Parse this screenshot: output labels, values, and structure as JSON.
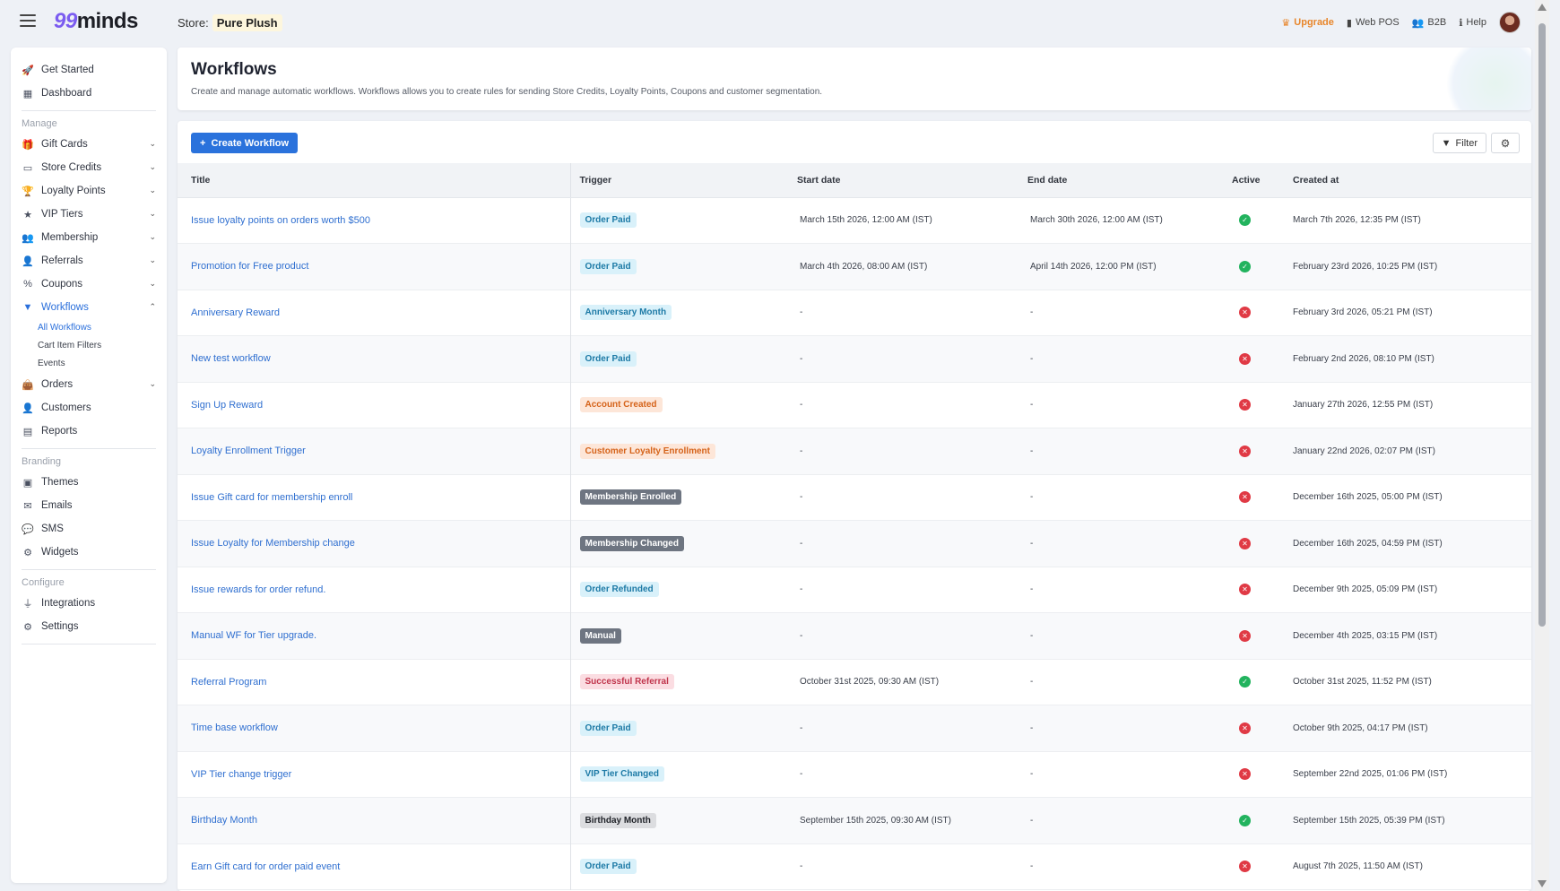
{
  "app": {
    "logo_num": "99",
    "logo_text": "minds",
    "store_label": "Store:",
    "store_name": "Pure Plush"
  },
  "top_actions": {
    "upgrade": "Upgrade",
    "web_pos": "Web POS",
    "b2b": "B2B",
    "help": "Help"
  },
  "sidebar": {
    "top_items": [
      {
        "label": "Get Started",
        "icon": "rocket-icon"
      },
      {
        "label": "Dashboard",
        "icon": "dashboard-icon"
      }
    ],
    "manage_label": "Manage",
    "manage_items": [
      {
        "label": "Gift Cards",
        "icon": "gift-icon"
      },
      {
        "label": "Store Credits",
        "icon": "credit-card-icon"
      },
      {
        "label": "Loyalty Points",
        "icon": "trophy-icon"
      },
      {
        "label": "VIP Tiers",
        "icon": "star-icon"
      },
      {
        "label": "Membership",
        "icon": "users-icon"
      },
      {
        "label": "Referrals",
        "icon": "user-plus-icon"
      },
      {
        "label": "Coupons",
        "icon": "percent-icon"
      },
      {
        "label": "Workflows",
        "icon": "filter-icon"
      }
    ],
    "workflow_subitems": [
      "All Workflows",
      "Cart Item Filters",
      "Events"
    ],
    "other_items": [
      {
        "label": "Orders",
        "icon": "bag-icon"
      },
      {
        "label": "Customers",
        "icon": "user-icon"
      },
      {
        "label": "Reports",
        "icon": "table-icon"
      }
    ],
    "branding_label": "Branding",
    "branding_items": [
      {
        "label": "Themes",
        "icon": "image-icon"
      },
      {
        "label": "Emails",
        "icon": "envelope-icon"
      },
      {
        "label": "SMS",
        "icon": "chat-icon"
      },
      {
        "label": "Widgets",
        "icon": "cog-icon"
      }
    ],
    "configure_label": "Configure",
    "configure_items": [
      {
        "label": "Integrations",
        "icon": "plug-icon"
      },
      {
        "label": "Settings",
        "icon": "cog-icon"
      }
    ]
  },
  "page": {
    "title": "Workflows",
    "description": "Create and manage automatic workflows. Workflows allows you to create rules for sending Store Credits, Loyalty Points, Coupons and customer segmentation."
  },
  "toolbar": {
    "create_label": "Create Workflow",
    "filter_label": "Filter"
  },
  "table": {
    "headers": [
      "Title",
      "Trigger",
      "Start date",
      "End date",
      "Active",
      "Created at"
    ],
    "rows": [
      {
        "title": "Issue loyalty points on orders worth $500",
        "trigger": "Order Paid",
        "badge": "blue",
        "start": "March 15th 2026, 12:00 AM (IST)",
        "end": "March 30th 2026, 12:00 AM (IST)",
        "active": true,
        "created": "March 7th 2026, 12:35 PM (IST)"
      },
      {
        "title": "Promotion for Free product",
        "trigger": "Order Paid",
        "badge": "blue",
        "start": "March 4th 2026, 08:00 AM (IST)",
        "end": "April 14th 2026, 12:00 PM (IST)",
        "active": true,
        "created": "February 23rd 2026, 10:25 PM (IST)"
      },
      {
        "title": "Anniversary Reward",
        "trigger": "Anniversary Month",
        "badge": "blue",
        "start": "-",
        "end": "-",
        "active": false,
        "created": "February 3rd 2026, 05:21 PM (IST)"
      },
      {
        "title": "New test workflow",
        "trigger": "Order Paid",
        "badge": "blue",
        "start": "-",
        "end": "-",
        "active": false,
        "created": "February 2nd 2026, 08:10 PM (IST)"
      },
      {
        "title": "Sign Up Reward",
        "trigger": "Account Created",
        "badge": "orange",
        "start": "-",
        "end": "-",
        "active": false,
        "created": "January 27th 2026, 12:55 PM (IST)"
      },
      {
        "title": "Loyalty Enrollment Trigger",
        "trigger": "Customer Loyalty Enrollment",
        "badge": "orange",
        "start": "-",
        "end": "-",
        "active": false,
        "created": "January 22nd 2026, 02:07 PM (IST)"
      },
      {
        "title": "Issue Gift card for membership enroll",
        "trigger": "Membership Enrolled",
        "badge": "gray",
        "start": "-",
        "end": "-",
        "active": false,
        "created": "December 16th 2025, 05:00 PM (IST)"
      },
      {
        "title": "Issue Loyalty for Membership change",
        "trigger": "Membership Changed",
        "badge": "gray",
        "start": "-",
        "end": "-",
        "active": false,
        "created": "December 16th 2025, 04:59 PM (IST)"
      },
      {
        "title": "Issue rewards for order refund.",
        "trigger": "Order Refunded",
        "badge": "blue",
        "start": "-",
        "end": "-",
        "active": false,
        "created": "December 9th 2025, 05:09 PM (IST)"
      },
      {
        "title": "Manual WF for Tier upgrade.",
        "trigger": "Manual",
        "badge": "gray",
        "start": "-",
        "end": "-",
        "active": false,
        "created": "December 4th 2025, 03:15 PM (IST)"
      },
      {
        "title": "Referral Program",
        "trigger": "Successful Referral",
        "badge": "red",
        "start": "October 31st 2025, 09:30 AM (IST)",
        "end": "-",
        "active": true,
        "created": "October 31st 2025, 11:52 PM (IST)"
      },
      {
        "title": "Time base workflow",
        "trigger": "Order Paid",
        "badge": "blue",
        "start": "-",
        "end": "-",
        "active": false,
        "created": "October 9th 2025, 04:17 PM (IST)"
      },
      {
        "title": "VIP Tier change trigger",
        "trigger": "VIP Tier Changed",
        "badge": "blue",
        "start": "-",
        "end": "-",
        "active": false,
        "created": "September 22nd 2025, 01:06 PM (IST)"
      },
      {
        "title": "Birthday Month",
        "trigger": "Birthday Month",
        "badge": "light",
        "start": "September 15th 2025, 09:30 AM (IST)",
        "end": "-",
        "active": true,
        "created": "September 15th 2025, 05:39 PM (IST)"
      },
      {
        "title": "Earn Gift card for order paid event",
        "trigger": "Order Paid",
        "badge": "blue",
        "start": "-",
        "end": "-",
        "active": false,
        "created": "August 7th 2025, 11:50 AM (IST)"
      }
    ]
  },
  "colors": {
    "accent": "#2a72dc",
    "upgrade": "#e8862b",
    "active_on": "#22b35e",
    "active_off": "#e03a45"
  }
}
